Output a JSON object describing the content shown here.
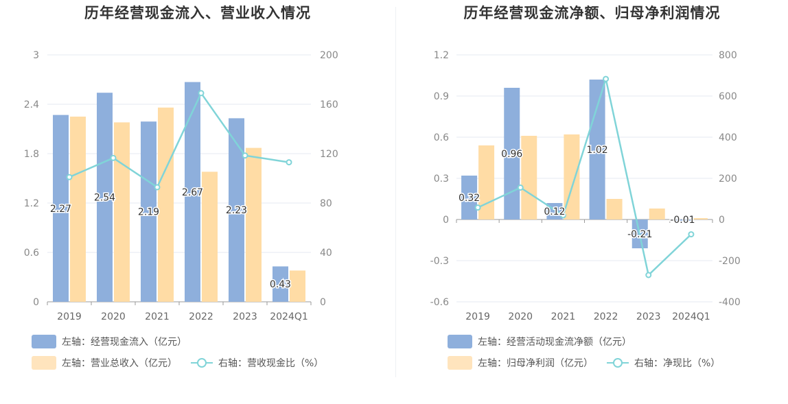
{
  "colors": {
    "bar1": "#8eafdc",
    "bar2": "#ffdca5",
    "line": "#80d4d8",
    "grid": "#e6e9f0",
    "axis": "#9a9a9a"
  },
  "left_panel": {
    "title": "历年经营现金流入、营业收入情况",
    "legend": {
      "bar1": "左轴：经营现金流入（亿元）",
      "bar2": "左轴：营业总收入（亿元）",
      "line": "右轴：营收现金比（%）"
    }
  },
  "right_panel": {
    "title": "历年经营现金流净额、归母净利润情况",
    "legend": {
      "bar1": "左轴：经营活动现金流净额（亿元）",
      "bar2": "左轴：归母净利润（亿元）",
      "line": "右轴：净现比（%）"
    }
  },
  "chart_data": [
    {
      "type": "bar",
      "title": "历年经营现金流入、营业收入情况",
      "categories": [
        "2019",
        "2020",
        "2021",
        "2022",
        "2023",
        "2024Q1"
      ],
      "left_axis": {
        "ylim": [
          0,
          3
        ],
        "ticks": [
          "0",
          "0.6",
          "1.2",
          "1.8",
          "2.4",
          "3"
        ]
      },
      "right_axis": {
        "ylim": [
          0,
          200
        ],
        "ticks": [
          "0",
          "40",
          "80",
          "120",
          "160",
          "200"
        ]
      },
      "series": [
        {
          "name": "左轴：经营现金流入（亿元）",
          "type": "bar",
          "axis": "left",
          "values": [
            2.27,
            2.54,
            2.19,
            2.67,
            2.23,
            0.43
          ],
          "labels": [
            "2.27",
            "2.54",
            "2.19",
            "2.67",
            "2.23",
            "0.43"
          ]
        },
        {
          "name": "左轴：营业总收入（亿元）",
          "type": "bar",
          "axis": "left",
          "values": [
            2.25,
            2.18,
            2.36,
            1.58,
            1.87,
            0.38
          ]
        },
        {
          "name": "右轴：营收现金比（%）",
          "type": "line",
          "axis": "right",
          "values": [
            101,
            116.5,
            92.8,
            169,
            118.5,
            113
          ]
        }
      ],
      "grid": true,
      "legend_position": "bottom-left"
    },
    {
      "type": "bar",
      "title": "历年经营现金流净额、归母净利润情况",
      "categories": [
        "2019",
        "2020",
        "2021",
        "2022",
        "2023",
        "2024Q1"
      ],
      "left_axis": {
        "ylim": [
          -0.6,
          1.2
        ],
        "ticks": [
          "-0.6",
          "-0.3",
          "0",
          "0.3",
          "0.6",
          "0.9",
          "1.2"
        ]
      },
      "right_axis": {
        "ylim": [
          -400,
          800
        ],
        "ticks": [
          "-400",
          "-200",
          "0",
          "200",
          "400",
          "600",
          "800"
        ]
      },
      "series": [
        {
          "name": "左轴：经营活动现金流净额（亿元）",
          "type": "bar",
          "axis": "left",
          "values": [
            0.32,
            0.96,
            0.12,
            1.02,
            -0.21,
            -0.01
          ],
          "labels": [
            "0.32",
            "0.96",
            "0.12",
            "1.02",
            "-0.21",
            "-0.01"
          ]
        },
        {
          "name": "左轴：归母净利润（亿元）",
          "type": "bar",
          "axis": "left",
          "values": [
            0.54,
            0.61,
            0.62,
            0.15,
            0.08,
            0.01
          ]
        },
        {
          "name": "右轴：净现比（%）",
          "type": "line",
          "axis": "right",
          "values": [
            58,
            155,
            20,
            683,
            -270,
            -72
          ]
        }
      ],
      "grid": true,
      "legend_position": "bottom-left"
    }
  ]
}
